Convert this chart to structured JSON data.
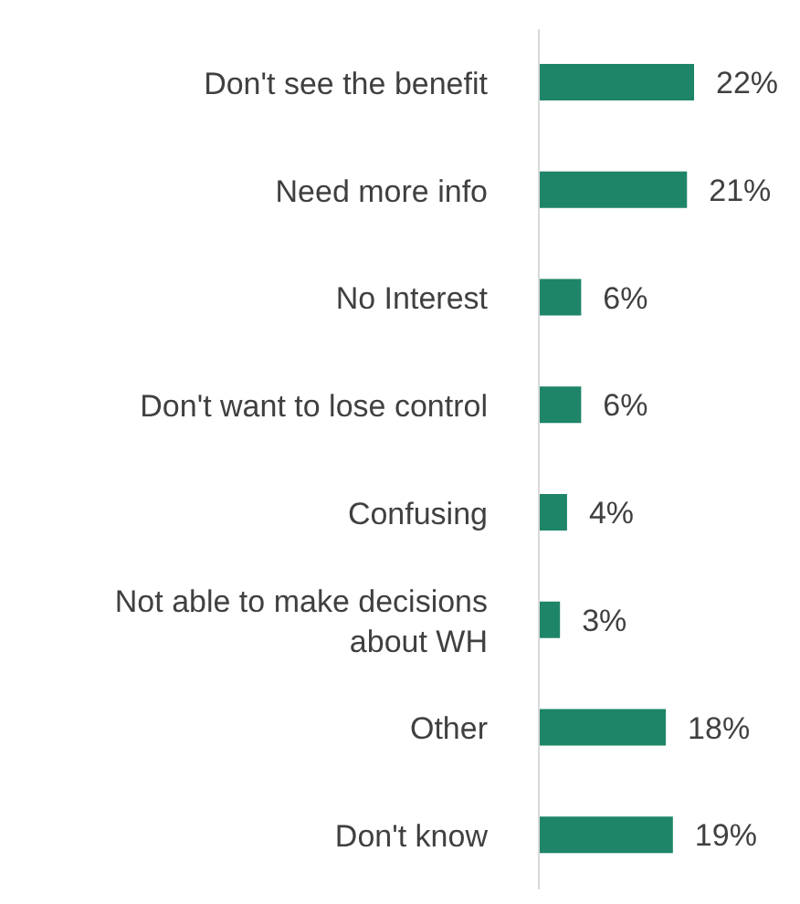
{
  "chart_data": {
    "type": "bar",
    "orientation": "horizontal",
    "categories": [
      "Don't see the benefit",
      "Need more info",
      "No Interest",
      "Don't want to lose control",
      "Confusing",
      "Not able to make decisions about WH",
      "Other",
      "Don't know"
    ],
    "values": [
      22,
      21,
      6,
      6,
      4,
      3,
      18,
      19
    ],
    "value_labels": [
      "22%",
      "21%",
      "6%",
      "6%",
      "4%",
      "3%",
      "18%",
      "19%"
    ],
    "color": "#1e8568",
    "grid": false,
    "legend": false
  }
}
